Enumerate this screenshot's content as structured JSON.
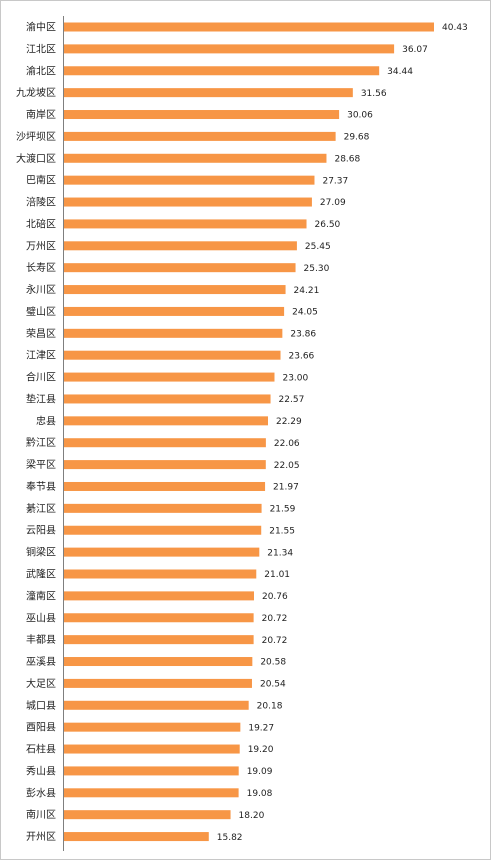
{
  "chart_data": {
    "type": "bar",
    "orientation": "horizontal",
    "title": "",
    "xlabel": "",
    "ylabel": "",
    "grid": false,
    "bar_color": "#F79646",
    "xlim": [
      0,
      44
    ],
    "categories": [
      "渝中区",
      "江北区",
      "渝北区",
      "九龙坡区",
      "南岸区",
      "沙坪坝区",
      "大渡口区",
      "巴南区",
      "涪陵区",
      "北碚区",
      "万州区",
      "长寿区",
      "永川区",
      "璧山区",
      "荣昌区",
      "江津区",
      "合川区",
      "垫江县",
      "忠县",
      "黔江区",
      "梁平区",
      "奉节县",
      "綦江区",
      "云阳县",
      "铜梁区",
      "武隆区",
      "潼南区",
      "巫山县",
      "丰都县",
      "巫溪县",
      "大足区",
      "城口县",
      "酉阳县",
      "石柱县",
      "秀山县",
      "彭水县",
      "南川区",
      "开州区"
    ],
    "values": [
      40.43,
      36.07,
      34.44,
      31.56,
      30.06,
      29.68,
      28.68,
      27.37,
      27.09,
      26.5,
      25.45,
      25.3,
      24.21,
      24.05,
      23.86,
      23.66,
      23.0,
      22.57,
      22.29,
      22.06,
      22.05,
      21.97,
      21.59,
      21.55,
      21.34,
      21.01,
      20.76,
      20.72,
      20.72,
      20.58,
      20.54,
      20.18,
      19.27,
      19.2,
      19.09,
      19.08,
      18.2,
      15.82
    ],
    "labels": [
      "40.43",
      "36.07",
      "34.44",
      "31.56",
      "30.06",
      "29.68",
      "28.68",
      "27.37",
      "27.09",
      "26.50",
      "25.45",
      "25.30",
      "24.21",
      "24.05",
      "23.86",
      "23.66",
      "23.00",
      "22.57",
      "22.29",
      "22.06",
      "22.05",
      "21.97",
      "21.59",
      "21.55",
      "21.34",
      "21.01",
      "20.76",
      "20.72",
      "20.72",
      "20.58",
      "20.54",
      "20.18",
      "19.27",
      "19.20",
      "19.09",
      "19.08",
      "18.20",
      "15.82"
    ]
  }
}
